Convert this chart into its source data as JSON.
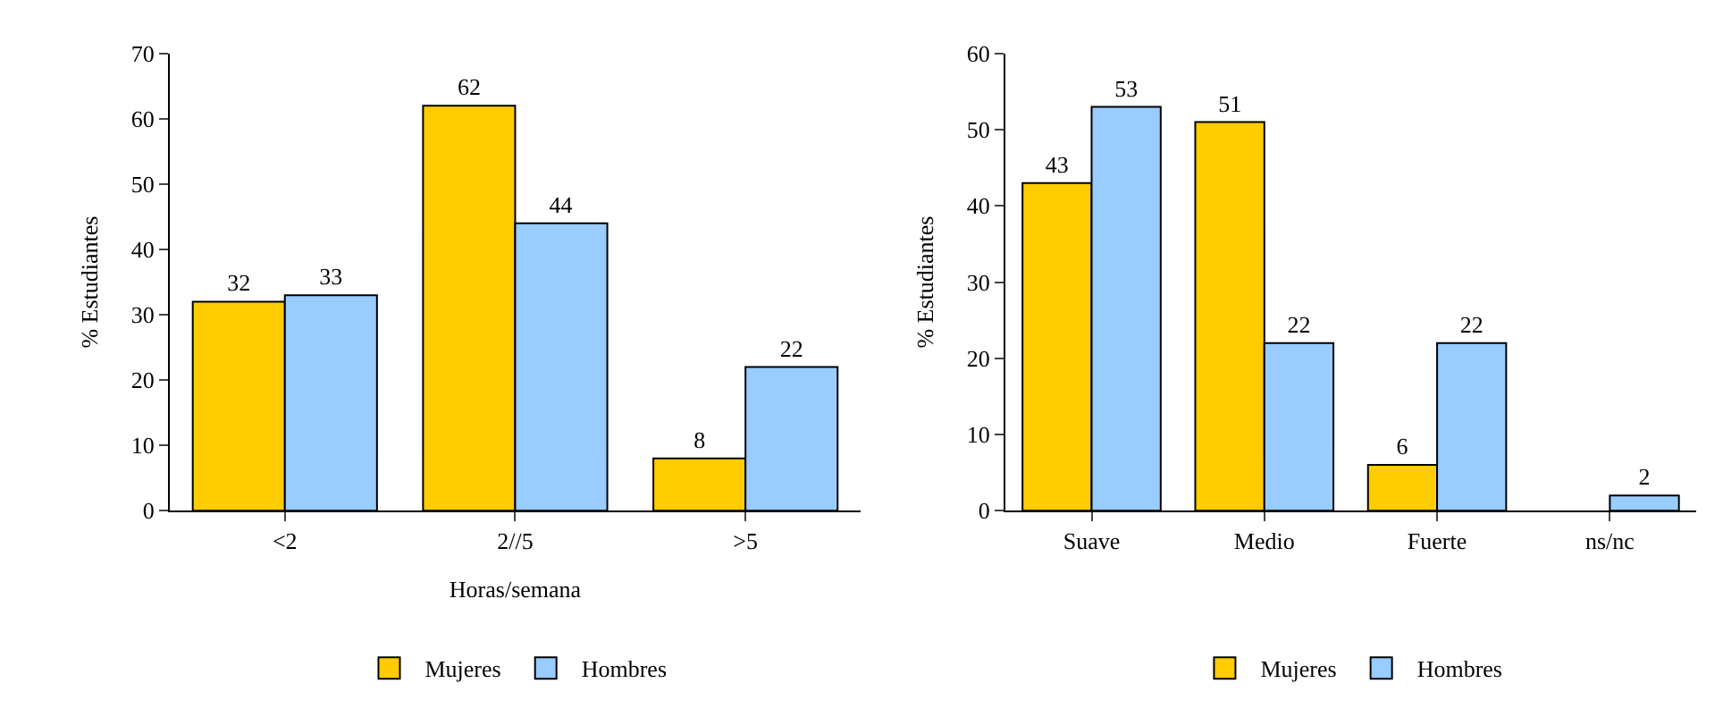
{
  "chart_data": [
    {
      "type": "bar",
      "xlabel": "Horas/semana",
      "ylabel": "% Estudiantes",
      "categories": [
        "<2",
        "2//5",
        ">5"
      ],
      "series": [
        {
          "name": "Mujeres",
          "color": "#ffcc00",
          "values": [
            32,
            62,
            8
          ]
        },
        {
          "name": "Hombres",
          "color": "#99ccff",
          "values": [
            33,
            44,
            22
          ]
        }
      ],
      "ylim": [
        0,
        70
      ],
      "yticks": [
        0,
        10,
        20,
        30,
        40,
        50,
        60,
        70
      ],
      "data_labels": true,
      "legend": "bottom"
    },
    {
      "type": "bar",
      "ylabel": "% Estudiantes",
      "categories": [
        "Suave",
        "Medio",
        "Fuerte",
        "ns/nc"
      ],
      "series": [
        {
          "name": "Mujeres",
          "color": "#ffcc00",
          "values": [
            43,
            51,
            6,
            null
          ]
        },
        {
          "name": "Hombres",
          "color": "#99ccff",
          "values": [
            53,
            22,
            22,
            2
          ]
        }
      ],
      "ylim": [
        0,
        60
      ],
      "yticks": [
        0,
        10,
        20,
        30,
        40,
        50,
        60
      ],
      "data_labels": true,
      "legend": "bottom"
    }
  ]
}
